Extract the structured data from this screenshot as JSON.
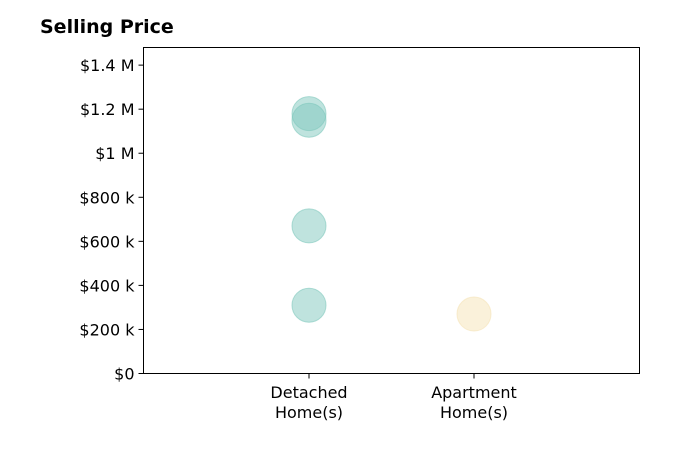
{
  "chart_data": {
    "type": "scatter",
    "title": "Selling Price",
    "xlabel": "",
    "ylabel": "",
    "categories": [
      [
        "Detached",
        "Home(s)"
      ],
      [
        "Apartment",
        "Home(s)"
      ]
    ],
    "y_ticks": [
      {
        "value": 0,
        "label": "$0"
      },
      {
        "value": 200000,
        "label": "$200 k"
      },
      {
        "value": 400000,
        "label": "$400 k"
      },
      {
        "value": 600000,
        "label": "$600 k"
      },
      {
        "value": 800000,
        "label": "$800 k"
      },
      {
        "value": 1000000,
        "label": "$1 M"
      },
      {
        "value": 1200000,
        "label": "$1.2 M"
      },
      {
        "value": 1400000,
        "label": "$1.4 M"
      }
    ],
    "ylim": [
      0,
      1480000
    ],
    "grid": false,
    "series": [
      {
        "category_index": 0,
        "color": "#7fc8bd",
        "values": [
          1180000,
          1150000,
          670000,
          310000
        ]
      },
      {
        "category_index": 1,
        "color": "#f5e3b5",
        "values": [
          270000
        ]
      }
    ]
  }
}
